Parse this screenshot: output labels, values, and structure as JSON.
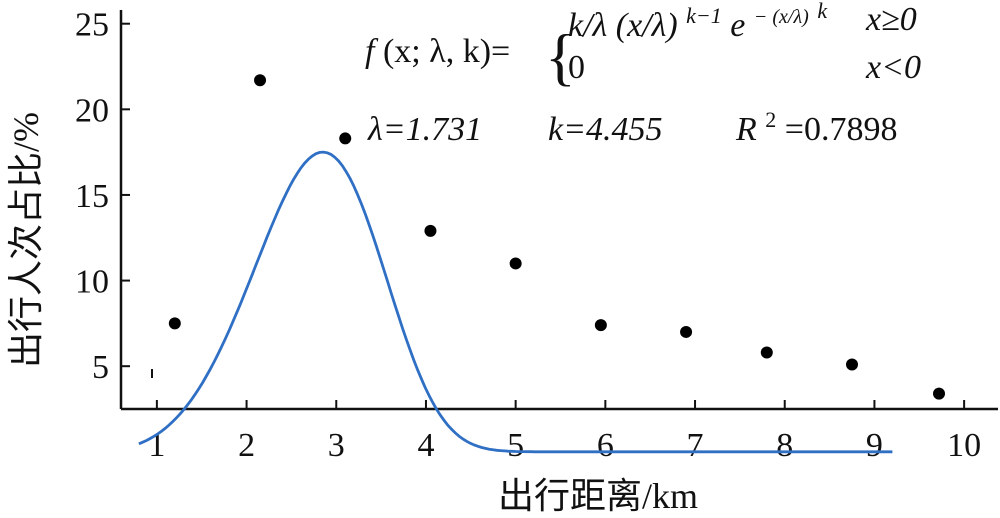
{
  "chart_data": {
    "type": "scatter",
    "title": "",
    "xlabel": "出行距离/km",
    "ylabel": "出行人次占比/%",
    "xlim": [
      0.6,
      10.4
    ],
    "ylim": [
      2.5,
      25.8
    ],
    "grid": false,
    "x_ticks": [
      "1",
      "2",
      "3",
      "4",
      "5",
      "6",
      "7",
      "8",
      "9",
      "10"
    ],
    "y_ticks": [
      "5",
      "10",
      "15",
      "20",
      "25"
    ],
    "x_tick_values": [
      1,
      2,
      3,
      4,
      5,
      6,
      7,
      8,
      9,
      10
    ],
    "y_tick_values": [
      5,
      10,
      15,
      20,
      25
    ],
    "series": [
      {
        "kind": "points",
        "color": "#000000",
        "x": [
          1.2,
          2.15,
          3.1,
          4.05,
          5.0,
          5.95,
          6.9,
          7.8,
          8.75,
          9.72
        ],
        "y": [
          7.5,
          21.7,
          18.3,
          12.9,
          11.0,
          7.4,
          7.0,
          5.8,
          5.1,
          3.4
        ]
      },
      {
        "kind": "fit-curve",
        "color": "#2f6fc4",
        "model": "weibull",
        "lambda": 1.731,
        "k": 4.455,
        "x_range": [
          0.8,
          9.2
        ],
        "y_fit_peak_value": 17.5
      }
    ],
    "formula": {
      "f": "f",
      "args": "(x; λ, k)=",
      "case1_expr": "k/λ (x/λ)",
      "case1_sup": "k−1",
      "case1_e": "e",
      "case1_exp": "− (x/λ)",
      "case1_exp_k": "k",
      "case1_cond": "x≥0",
      "case2_expr": "0",
      "case2_cond": "x<0"
    },
    "params": {
      "lambda": "λ=1.731",
      "k": "k=4.455",
      "r2_label": "R",
      "r2_sup": "2",
      "r2_value": "=0.7898"
    }
  }
}
